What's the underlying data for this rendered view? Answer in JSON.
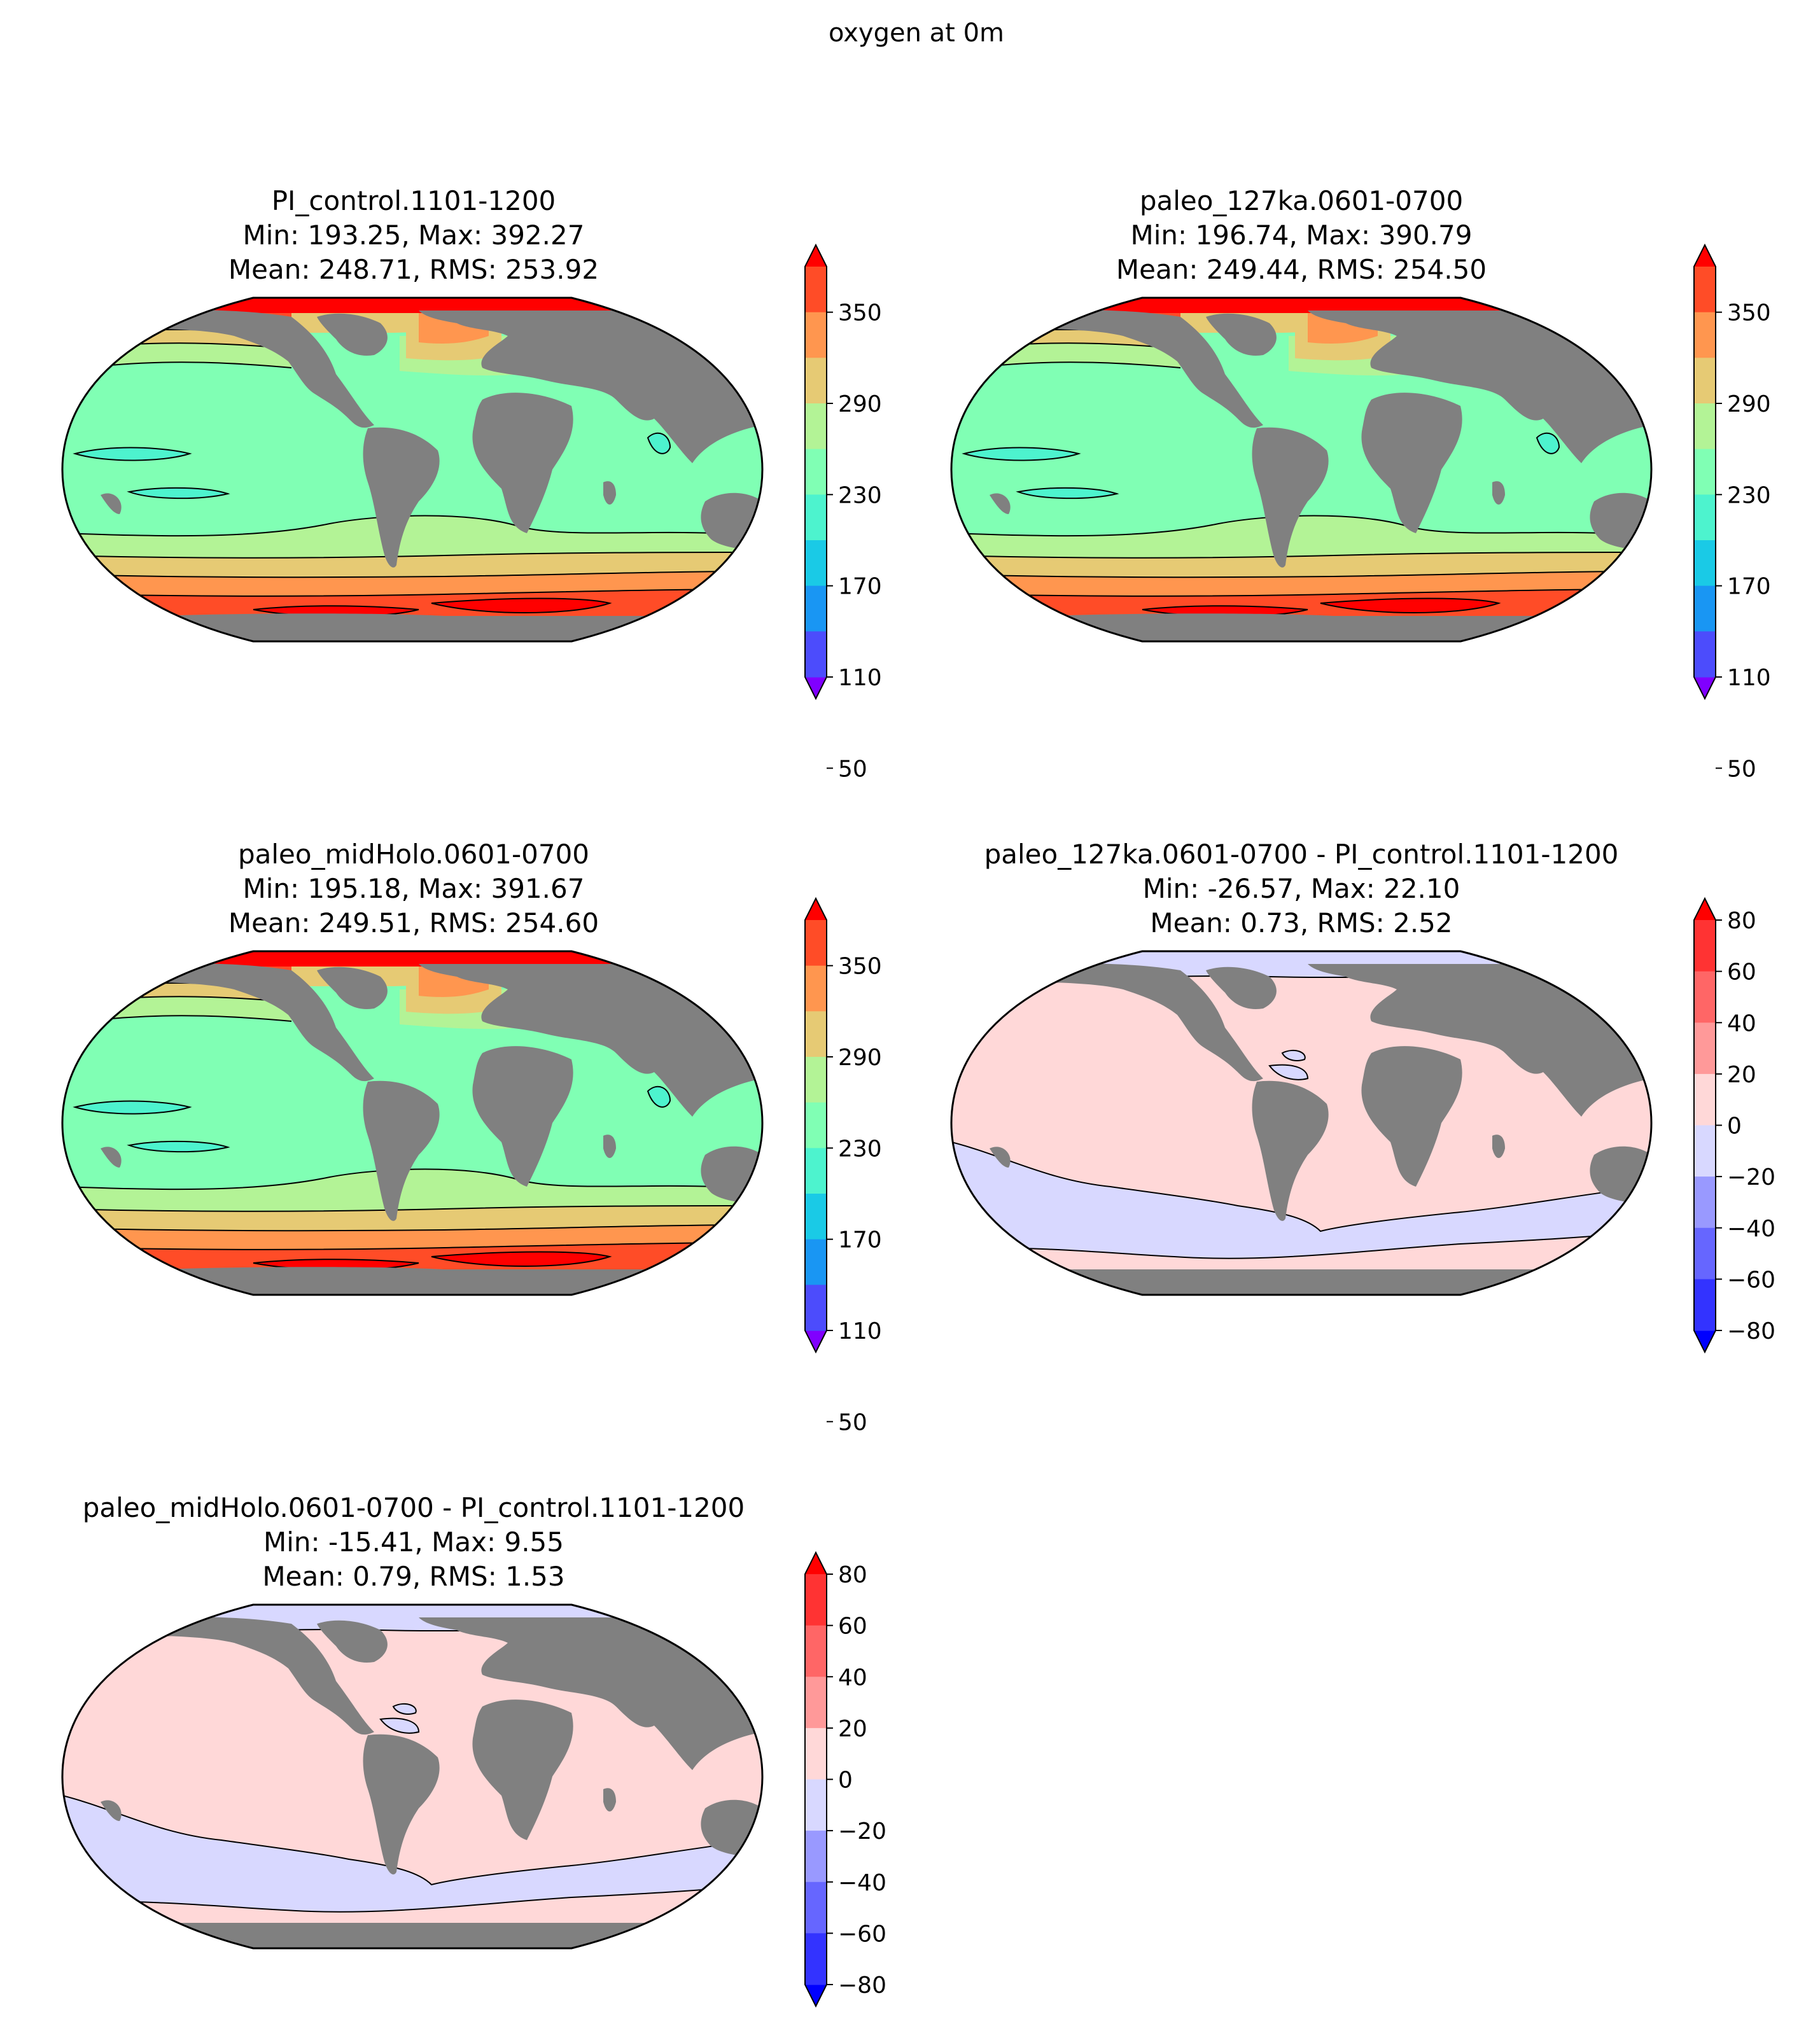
{
  "figure": {
    "title": "oxygen at 0m"
  },
  "colormaps": {
    "abs": [
      "#8000ff",
      "#4c4cfc",
      "#1996f3",
      "#1acae6",
      "#4df3ce",
      "#80ffb4",
      "#b3f396",
      "#e6ca74",
      "#ff964f",
      "#ff4c27",
      "#ff0000"
    ],
    "diff": [
      "#0000ff",
      "#3333ff",
      "#6666ff",
      "#9999ff",
      "#d8d8ff",
      "#ffd8d8",
      "#ff9999",
      "#ff6666",
      "#ff3333",
      "#ff0000"
    ],
    "land": "#808080"
  },
  "panels": [
    {
      "id": "pi-control",
      "type": "abs",
      "title": "PI_control.1101-1200",
      "stats1": "Min: 193.25, Max: 392.27",
      "stats2": "Mean: 248.71, RMS: 253.92",
      "ticks": [
        "350",
        "290",
        "230",
        "170",
        "110",
        "50"
      ]
    },
    {
      "id": "paleo-127ka",
      "type": "abs",
      "title": "paleo_127ka.0601-0700",
      "stats1": "Min: 196.74, Max: 390.79",
      "stats2": "Mean: 249.44, RMS: 254.50",
      "ticks": [
        "350",
        "290",
        "230",
        "170",
        "110",
        "50"
      ]
    },
    {
      "id": "paleo-midholo",
      "type": "abs",
      "title": "paleo_midHolo.0601-0700",
      "stats1": "Min: 195.18, Max: 391.67",
      "stats2": "Mean: 249.51, RMS: 254.60",
      "ticks": [
        "350",
        "290",
        "230",
        "170",
        "110",
        "50"
      ]
    },
    {
      "id": "diff-127ka",
      "type": "diff",
      "title": "paleo_127ka.0601-0700 - PI_control.1101-1200",
      "stats1": "Min: -26.57, Max: 22.10",
      "stats2": "Mean: 0.73, RMS: 2.52",
      "ticks": [
        "80",
        "60",
        "40",
        "20",
        "0",
        "−20",
        "−40",
        "−60",
        "−80"
      ]
    },
    {
      "id": "diff-midholo",
      "type": "diff",
      "title": "paleo_midHolo.0601-0700 - PI_control.1101-1200",
      "stats1": "Min: -15.41, Max: 9.55",
      "stats2": "Mean: 0.79, RMS: 1.53",
      "ticks": [
        "80",
        "60",
        "40",
        "20",
        "0",
        "−20",
        "−40",
        "−60",
        "−80"
      ]
    }
  ]
}
